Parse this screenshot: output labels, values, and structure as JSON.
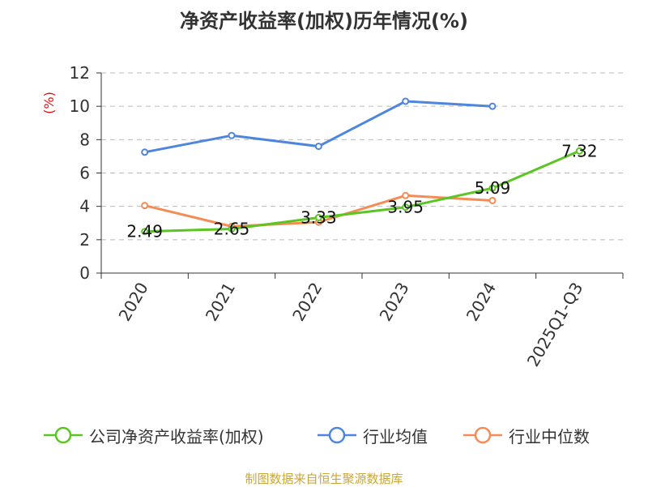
{
  "colors": {
    "company": "#5bc522",
    "industry_avg": "#4f86dd",
    "industry_median": "#f58c56",
    "axis": "#333333",
    "grid": "#bbbbbb",
    "unit": "#e01010",
    "source": "#c9a63a"
  },
  "chart_data": {
    "type": "line",
    "title": "净资产收益率(加权)历年情况(%)",
    "ylabel": "(%)",
    "xlabel": "",
    "categories": [
      "2020",
      "2021",
      "2022",
      "2023",
      "2024",
      "2025Q1-Q3"
    ],
    "ylim": [
      0,
      12
    ],
    "yticks": [
      "0",
      "2",
      "4",
      "6",
      "8",
      "10",
      "12"
    ],
    "grid": true,
    "legend_position": "bottom",
    "series": [
      {
        "name": "公司净资产收益率(加权)",
        "values": [
          2.49,
          2.65,
          3.33,
          3.95,
          5.09,
          7.32
        ],
        "labels": [
          "2.49",
          "2.65",
          "3.33",
          "3.95",
          "5.09",
          "7.32"
        ]
      },
      {
        "name": "行业均值",
        "values": [
          7.25,
          8.25,
          7.6,
          10.3,
          10.0,
          null
        ]
      },
      {
        "name": "行业中位数",
        "values": [
          4.05,
          2.8,
          3.05,
          4.65,
          4.35,
          null
        ]
      }
    ]
  },
  "legend": [
    "公司净资产收益率(加权)",
    "行业均值",
    "行业中位数"
  ],
  "source": "制图数据来自恒生聚源数据库"
}
